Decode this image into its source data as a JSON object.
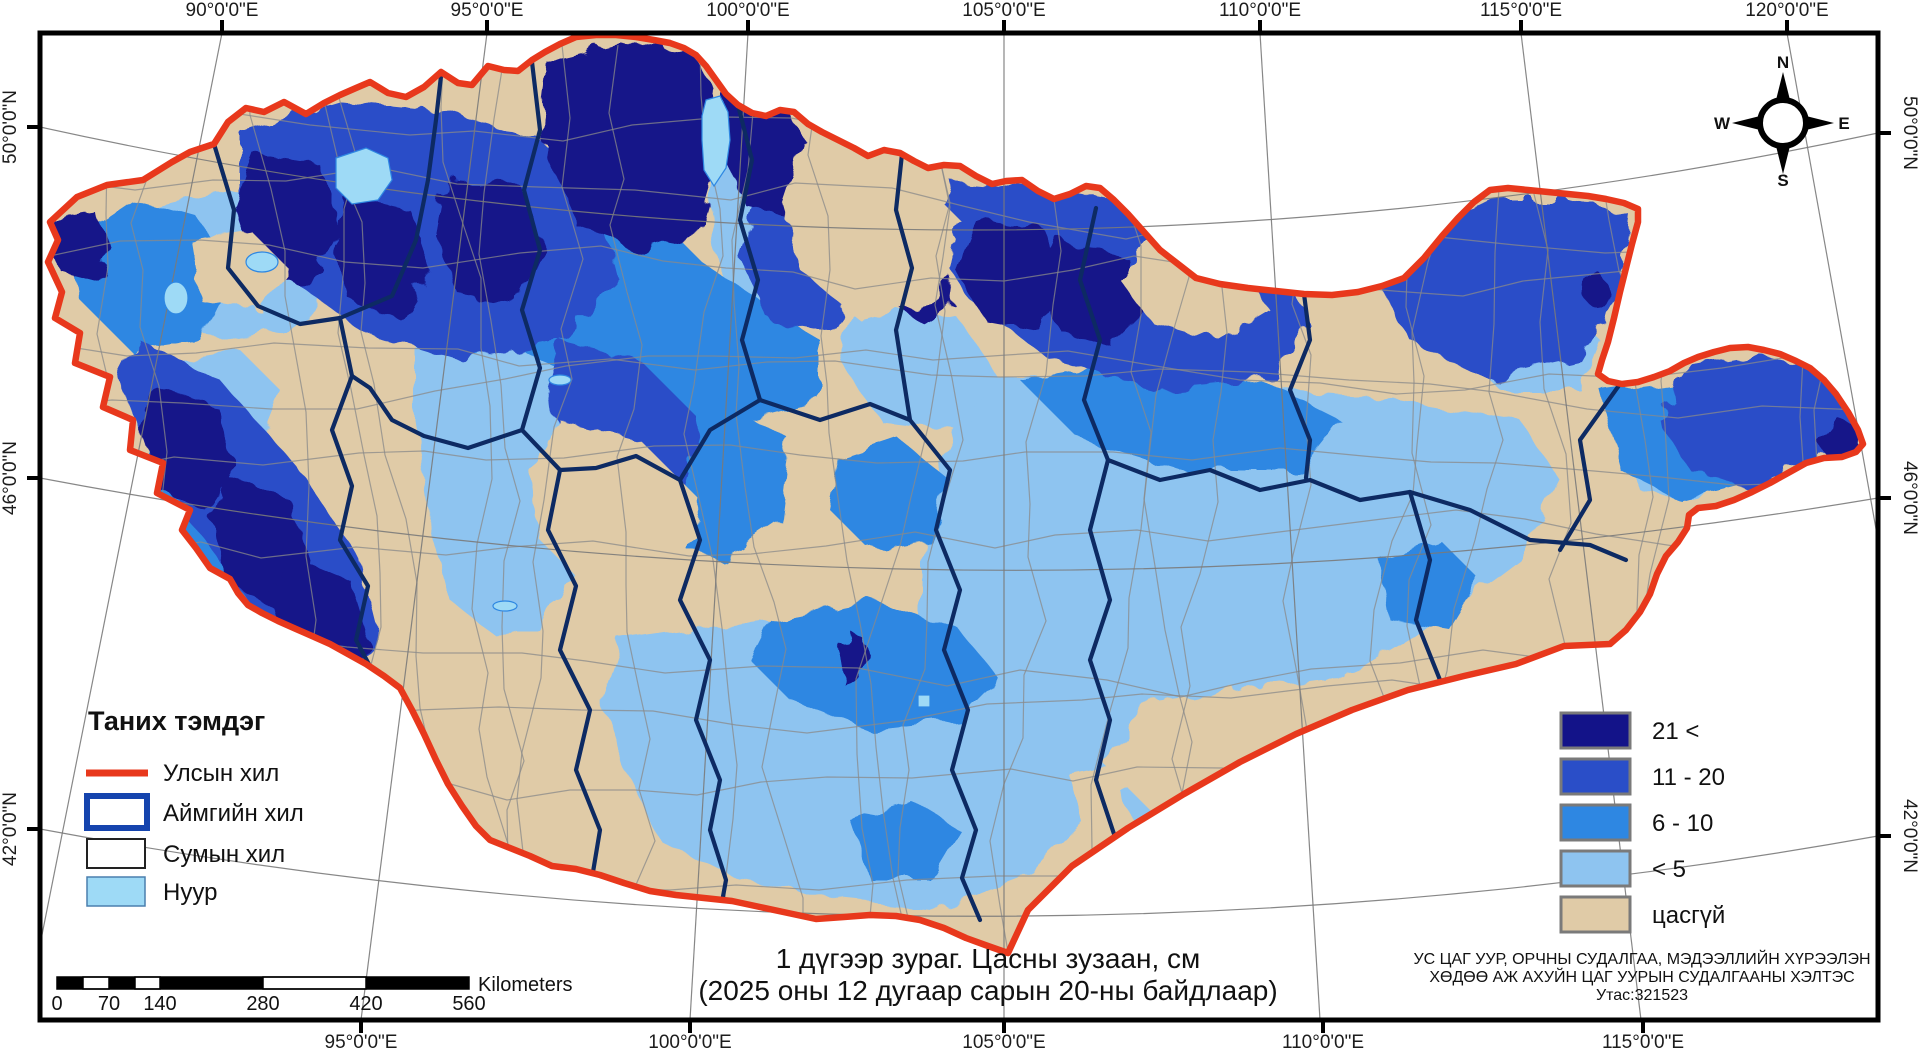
{
  "map_title": {
    "line1": "1 дүгээр зураг. Цасны зузаан, см",
    "line2": "(2025 оны 12 дугаар сарын 20-ны байдлаар)"
  },
  "attribution": {
    "line1": "УС ЦАГ УУР, ОРЧНЫ СУДАЛГАА, МЭДЭЭЛЛИЙН ХҮРЭЭЛЭН",
    "line2": "ХӨДӨӨ АЖ АХУЙН ЦАГ УУРЫН СУДАЛГААНЫ ХЭЛТЭС",
    "line3": "Утас:321523"
  },
  "graticule": {
    "top": [
      "90°0'0\"E",
      "95°0'0\"E",
      "100°0'0\"E",
      "105°0'0\"E",
      "110°0'0\"E",
      "115°0'0\"E",
      "120°0'0\"E"
    ],
    "bottom": [
      "95°0'0\"E",
      "100°0'0\"E",
      "105°0'0\"E",
      "110°0'0\"E",
      "115°0'0\"E"
    ],
    "left": [
      "50°0'0\"N",
      "46°0'0\"N",
      "42°0'0\"N"
    ],
    "right": [
      "50°0'0\"N",
      "46°0'0\"N",
      "42°0'0\"N"
    ]
  },
  "compass": {
    "north": "N",
    "east": "E",
    "south": "S",
    "west": "W"
  },
  "legend": {
    "title": "Таних тэмдэг",
    "items": [
      {
        "label": "Улсын хил"
      },
      {
        "label": "Аймгийн хил"
      },
      {
        "label": "Сумын хил"
      },
      {
        "label": "Нуур"
      }
    ]
  },
  "snow_classes": [
    {
      "label": "21 <",
      "color": "#131389"
    },
    {
      "label": "11 - 20",
      "color": "#2A4EC8"
    },
    {
      "label": "6 - 10",
      "color": "#2E87E2"
    },
    {
      "label": "< 5",
      "color": "#8EC4F0"
    },
    {
      "label": "цасгүй",
      "color": "#E0CBA7"
    }
  ],
  "scalebar": {
    "labels": [
      "0",
      "70",
      "140",
      "280",
      "420",
      "560"
    ],
    "unit": "Kilometers"
  },
  "colors": {
    "state_border": "#E8381C",
    "aimag_border": "#0D2A63",
    "aimag_swatch": "#1544AE",
    "sum_border": "#8A8A8A",
    "lake_fill": "#9EDAF6",
    "lake_stroke": "#2E87E2",
    "graticule": "#7A7A7A",
    "navy": "#131389",
    "medium_blue": "#2A4EC8",
    "blue": "#2E87E2",
    "light_blue": "#8EC4F0",
    "tan": "#E0CBA7"
  }
}
